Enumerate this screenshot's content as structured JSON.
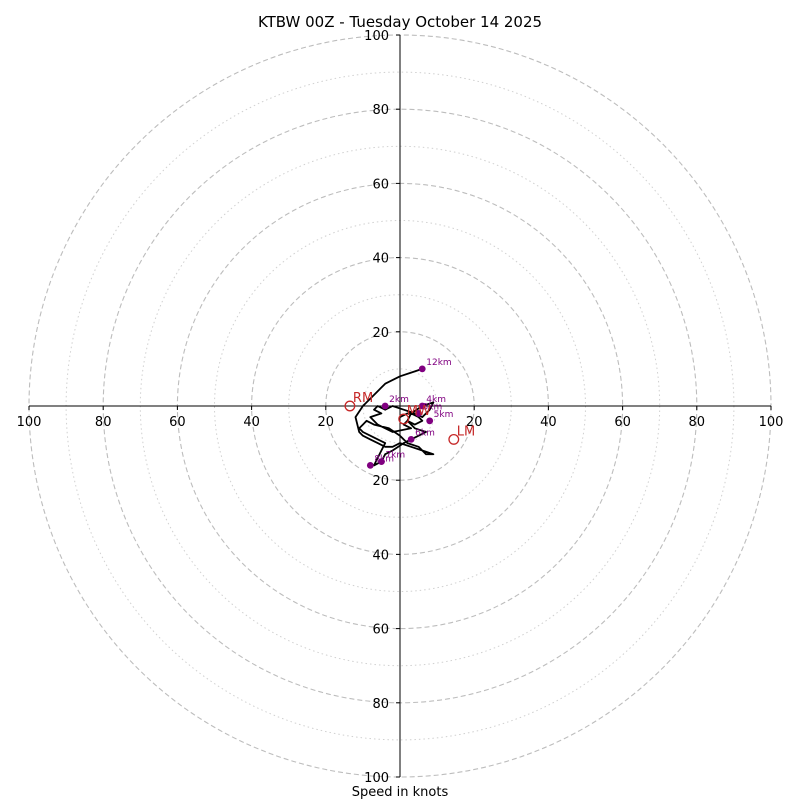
{
  "chart_data": {
    "type": "hodograph",
    "title": "KTBW 00Z - Tuesday October 14 2025",
    "xlabel": "Speed in knots",
    "range": [
      -100,
      100
    ],
    "ring_major": [
      20,
      40,
      60,
      80,
      100
    ],
    "ring_minor": [
      10,
      30,
      50,
      70,
      90
    ],
    "x_tick_labels": [
      "100",
      "80",
      "60",
      "40",
      "20",
      "20",
      "40",
      "60",
      "80",
      "100"
    ],
    "x_tick_values": [
      -100,
      -80,
      -60,
      -40,
      -20,
      20,
      40,
      60,
      80,
      100
    ],
    "y_tick_labels": [
      "100",
      "80",
      "60",
      "40",
      "20",
      "20",
      "40",
      "60",
      "80",
      "100"
    ],
    "y_tick_values": [
      100,
      80,
      60,
      40,
      20,
      -20,
      -40,
      -60,
      -80,
      -100
    ],
    "series": [
      {
        "units": "knots",
        "u": [
          0,
          2,
          3,
          5,
          6,
          4,
          2,
          1,
          3,
          -2,
          -4,
          -6,
          -8,
          -5,
          -7,
          -6,
          -4,
          -2,
          1,
          4,
          6,
          8,
          9,
          6,
          3,
          2,
          4,
          7,
          5,
          3,
          1,
          -2,
          -4,
          -5,
          -7,
          -6,
          -5,
          -4,
          -8,
          -10,
          -11,
          -10,
          -9,
          -7,
          -3,
          0,
          2,
          5,
          6,
          7,
          9,
          6,
          3,
          0,
          -2,
          -4,
          -6,
          -8,
          -10,
          -11,
          -12,
          -10,
          -6,
          -4,
          0,
          3,
          6
        ],
        "v": [
          -3,
          -2,
          -2,
          -3,
          -4,
          -5,
          -4,
          -5,
          -6,
          -7,
          -6,
          -5,
          -3,
          -2,
          -1,
          0,
          -1,
          0,
          -1,
          -2,
          -3,
          -1,
          1,
          0,
          -2,
          -4,
          -6,
          -7,
          -8,
          -9,
          -10,
          -12,
          -13,
          -15,
          -16,
          -14,
          -12,
          -10,
          -8,
          -7,
          -6,
          -5,
          -4,
          -5,
          -6,
          -8,
          -10,
          -11,
          -12,
          -13,
          -13,
          -12,
          -11,
          -10,
          -11,
          -11,
          -10,
          -9,
          -8,
          -7,
          -3,
          0,
          4,
          6,
          8,
          9,
          10
        ]
      }
    ],
    "height_markers": [
      {
        "label": "2km",
        "u": -4,
        "v": 0
      },
      {
        "label": "4km",
        "u": 6,
        "v": 0
      },
      {
        "label": "3km",
        "u": 5,
        "v": -2
      },
      {
        "label": "5km",
        "u": 8,
        "v": -4
      },
      {
        "label": "6km",
        "u": 3,
        "v": -9
      },
      {
        "label": "7km",
        "u": -5,
        "v": -15
      },
      {
        "label": "8km",
        "u": -8,
        "v": -16
      },
      {
        "label": "12km",
        "u": 6,
        "v": 10
      }
    ],
    "storm_motion": [
      {
        "label": "RM",
        "u": -13.5,
        "v": 0
      },
      {
        "label": "LM",
        "u": 14.5,
        "v": -9
      },
      {
        "label": "MW",
        "u": 1,
        "v": -3.5
      }
    ],
    "colors": {
      "trace": "#000000",
      "height_marker": "#800080",
      "storm_motion": "#c62828",
      "grid": "#bdbdbd"
    }
  }
}
